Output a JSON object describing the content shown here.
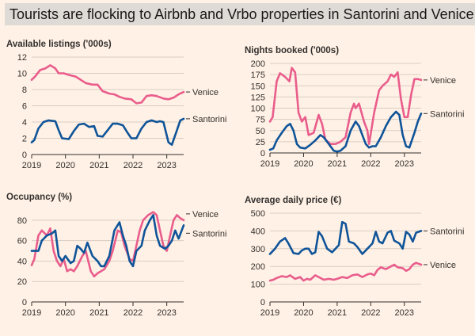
{
  "title": "Tourists are flocking to Airbnb and Vrbo properties in Santorini and Venice",
  "colors": {
    "background": "#fff1e5",
    "venice": "#e95d8c",
    "santorini": "#0f5499",
    "grid": "#d9cdc3",
    "axis": "#33302e"
  },
  "chart_data": [
    {
      "id": "listings",
      "type": "line",
      "title": "Available listings ('000s)",
      "ylim": [
        0,
        12
      ],
      "yticks": [
        0,
        2,
        4,
        6,
        8,
        10,
        12
      ],
      "xlim": [
        2019,
        2023.5
      ],
      "xticks": [
        2019,
        2020,
        2021,
        2022,
        2023
      ],
      "xtick_labels": [
        "2019",
        "2020",
        "2021",
        "2022",
        "2023"
      ],
      "series": [
        {
          "name": "Venice",
          "x": [
            2019.0,
            2019.1,
            2019.25,
            2019.4,
            2019.55,
            2019.7,
            2019.8,
            2019.95,
            2020.1,
            2020.3,
            2020.45,
            2020.6,
            2020.8,
            2020.95,
            2021.1,
            2021.3,
            2021.45,
            2021.6,
            2021.75,
            2021.95,
            2022.1,
            2022.25,
            2022.4,
            2022.55,
            2022.7,
            2022.9,
            2023.05,
            2023.2,
            2023.35,
            2023.5
          ],
          "values": [
            9.2,
            9.6,
            10.4,
            10.6,
            11.0,
            10.6,
            10.0,
            10.0,
            9.8,
            9.6,
            9.2,
            8.8,
            8.6,
            8.6,
            7.8,
            7.5,
            7.4,
            7.1,
            6.9,
            6.8,
            6.3,
            6.4,
            7.2,
            7.3,
            7.2,
            6.9,
            6.8,
            7.0,
            7.4,
            7.7
          ]
        },
        {
          "name": "Santorini",
          "x": [
            2019.0,
            2019.08,
            2019.2,
            2019.35,
            2019.5,
            2019.7,
            2019.8,
            2019.9,
            2020.1,
            2020.25,
            2020.4,
            2020.55,
            2020.7,
            2020.85,
            2020.95,
            2021.1,
            2021.25,
            2021.4,
            2021.55,
            2021.7,
            2021.85,
            2021.95,
            2022.1,
            2022.25,
            2022.4,
            2022.55,
            2022.7,
            2022.8,
            2022.9,
            2023.05,
            2023.15,
            2023.3,
            2023.4,
            2023.5
          ],
          "values": [
            1.5,
            1.8,
            3.2,
            4.0,
            4.2,
            4.1,
            3.0,
            2.0,
            1.9,
            2.9,
            3.7,
            3.8,
            3.4,
            3.5,
            2.3,
            2.2,
            3.0,
            3.8,
            3.8,
            3.6,
            2.6,
            2.0,
            2.0,
            3.2,
            4.0,
            4.2,
            4.0,
            4.1,
            4.0,
            1.5,
            1.2,
            3.0,
            4.2,
            4.4
          ]
        }
      ]
    },
    {
      "id": "nights",
      "type": "line",
      "title": "Nights booked ('000s)",
      "ylim": [
        0,
        200
      ],
      "yticks": [
        0,
        25,
        50,
        75,
        100,
        125,
        150,
        175,
        200
      ],
      "xlim": [
        2019,
        2023.5
      ],
      "xticks": [
        2019,
        2020,
        2021,
        2022,
        2023
      ],
      "xtick_labels": [
        "2019",
        "2020",
        "2021",
        "2022",
        "2023"
      ],
      "series": [
        {
          "name": "Venice",
          "x": [
            2019.0,
            2019.08,
            2019.2,
            2019.3,
            2019.45,
            2019.58,
            2019.65,
            2019.75,
            2019.85,
            2019.95,
            2020.05,
            2020.15,
            2020.3,
            2020.45,
            2020.55,
            2020.65,
            2020.8,
            2020.95,
            2021.1,
            2021.25,
            2021.4,
            2021.5,
            2021.55,
            2021.65,
            2021.8,
            2021.9,
            2021.95,
            2022.1,
            2022.25,
            2022.35,
            2022.5,
            2022.6,
            2022.7,
            2022.8,
            2022.9,
            2023.0,
            2023.1,
            2023.2,
            2023.3,
            2023.4,
            2023.5
          ],
          "values": [
            70,
            80,
            160,
            178,
            170,
            160,
            190,
            180,
            90,
            70,
            80,
            40,
            45,
            85,
            65,
            30,
            20,
            20,
            25,
            35,
            90,
            110,
            100,
            110,
            70,
            50,
            20,
            90,
            140,
            150,
            160,
            175,
            170,
            180,
            120,
            80,
            80,
            130,
            165,
            165,
            163
          ]
        },
        {
          "name": "Santorini",
          "x": [
            2019.0,
            2019.1,
            2019.2,
            2019.35,
            2019.5,
            2019.6,
            2019.7,
            2019.8,
            2019.9,
            2020.05,
            2020.2,
            2020.35,
            2020.5,
            2020.6,
            2020.75,
            2020.9,
            2021.0,
            2021.1,
            2021.25,
            2021.4,
            2021.55,
            2021.65,
            2021.75,
            2021.85,
            2021.95,
            2022.05,
            2022.15,
            2022.3,
            2022.45,
            2022.6,
            2022.75,
            2022.85,
            2022.95,
            2023.05,
            2023.15,
            2023.3,
            2023.4,
            2023.5
          ],
          "values": [
            7,
            10,
            28,
            45,
            60,
            65,
            50,
            20,
            12,
            10,
            18,
            28,
            40,
            35,
            20,
            5,
            3,
            5,
            15,
            50,
            70,
            60,
            40,
            20,
            12,
            15,
            15,
            35,
            60,
            80,
            92,
            85,
            40,
            15,
            12,
            45,
            70,
            88
          ]
        }
      ]
    },
    {
      "id": "occupancy",
      "type": "line",
      "title": "Occupancy (%)",
      "ylim": [
        0,
        90
      ],
      "yticks": [
        0,
        20,
        40,
        60,
        80
      ],
      "xlim": [
        2019,
        2023.5
      ],
      "xticks": [
        2019,
        2020,
        2021,
        2022,
        2023
      ],
      "xtick_labels": [
        "2019",
        "2020",
        "2021",
        "2022",
        "2023"
      ],
      "series": [
        {
          "name": "Venice",
          "x": [
            2019.0,
            2019.08,
            2019.2,
            2019.3,
            2019.45,
            2019.55,
            2019.65,
            2019.75,
            2019.85,
            2019.95,
            2020.05,
            2020.15,
            2020.25,
            2020.35,
            2020.5,
            2020.6,
            2020.75,
            2020.85,
            2020.95,
            2021.05,
            2021.15,
            2021.3,
            2021.4,
            2021.55,
            2021.65,
            2021.75,
            2021.9,
            2022.0,
            2022.1,
            2022.2,
            2022.3,
            2022.45,
            2022.6,
            2022.7,
            2022.8,
            2022.9,
            2023.0,
            2023.1,
            2023.2,
            2023.3,
            2023.4,
            2023.5
          ],
          "values": [
            36,
            42,
            65,
            70,
            65,
            72,
            50,
            40,
            35,
            42,
            30,
            32,
            30,
            35,
            45,
            50,
            30,
            25,
            28,
            30,
            32,
            40,
            50,
            70,
            68,
            55,
            42,
            40,
            55,
            70,
            80,
            85,
            88,
            85,
            70,
            55,
            50,
            65,
            80,
            85,
            82,
            80
          ]
        },
        {
          "name": "Santorini",
          "x": [
            2019.0,
            2019.1,
            2019.2,
            2019.3,
            2019.45,
            2019.6,
            2019.7,
            2019.8,
            2019.9,
            2020.0,
            2020.15,
            2020.25,
            2020.35,
            2020.45,
            2020.55,
            2020.65,
            2020.8,
            2020.95,
            2021.05,
            2021.15,
            2021.3,
            2021.45,
            2021.6,
            2021.7,
            2021.8,
            2021.9,
            2022.0,
            2022.1,
            2022.25,
            2022.35,
            2022.5,
            2022.6,
            2022.7,
            2022.8,
            2022.95,
            2023.05,
            2023.15,
            2023.25,
            2023.35,
            2023.5
          ],
          "values": [
            50,
            50,
            50,
            60,
            65,
            67,
            70,
            45,
            40,
            45,
            38,
            40,
            55,
            52,
            48,
            58,
            45,
            40,
            35,
            35,
            45,
            70,
            78,
            65,
            55,
            40,
            35,
            50,
            55,
            70,
            80,
            85,
            65,
            55,
            52,
            55,
            60,
            70,
            62,
            75
          ]
        }
      ]
    },
    {
      "id": "price",
      "type": "line",
      "title": "Average daily price (€)",
      "ylim": [
        0,
        500
      ],
      "yticks": [
        0,
        100,
        200,
        300,
        400,
        500
      ],
      "xlim": [
        2019,
        2023.5
      ],
      "xticks": [
        2019,
        2020,
        2021,
        2022,
        2023
      ],
      "xtick_labels": [
        "2019",
        "2020",
        "2021",
        "2022",
        "2023"
      ],
      "series": [
        {
          "name": "Santorini",
          "x": [
            2019.0,
            2019.05,
            2019.15,
            2019.3,
            2019.45,
            2019.55,
            2019.7,
            2019.85,
            2019.95,
            2020.05,
            2020.15,
            2020.25,
            2020.35,
            2020.45,
            2020.55,
            2020.7,
            2020.85,
            2020.95,
            2021.05,
            2021.15,
            2021.25,
            2021.35,
            2021.5,
            2021.6,
            2021.75,
            2021.9,
            2022.05,
            2022.15,
            2022.25,
            2022.35,
            2022.5,
            2022.6,
            2022.7,
            2022.85,
            2022.95,
            2023.05,
            2023.15,
            2023.25,
            2023.35,
            2023.5
          ],
          "values": [
            270,
            280,
            300,
            340,
            360,
            330,
            275,
            270,
            290,
            300,
            300,
            270,
            280,
            395,
            370,
            300,
            280,
            300,
            320,
            450,
            440,
            340,
            330,
            310,
            270,
            300,
            330,
            395,
            340,
            330,
            390,
            400,
            345,
            330,
            300,
            395,
            380,
            340,
            390,
            400
          ]
        },
        {
          "name": "Venice",
          "x": [
            2019.0,
            2019.1,
            2019.2,
            2019.35,
            2019.5,
            2019.6,
            2019.75,
            2019.9,
            2020.0,
            2020.1,
            2020.2,
            2020.35,
            2020.45,
            2020.6,
            2020.75,
            2020.9,
            2021.0,
            2021.15,
            2021.3,
            2021.45,
            2021.6,
            2021.75,
            2021.9,
            2022.0,
            2022.1,
            2022.2,
            2022.3,
            2022.45,
            2022.6,
            2022.7,
            2022.8,
            2022.95,
            2023.05,
            2023.15,
            2023.25,
            2023.35,
            2023.5
          ],
          "values": [
            120,
            125,
            135,
            145,
            140,
            150,
            130,
            140,
            120,
            130,
            125,
            150,
            140,
            125,
            130,
            125,
            130,
            140,
            135,
            150,
            155,
            140,
            155,
            160,
            150,
            180,
            195,
            185,
            200,
            210,
            195,
            190,
            175,
            185,
            210,
            220,
            210
          ]
        }
      ]
    }
  ]
}
